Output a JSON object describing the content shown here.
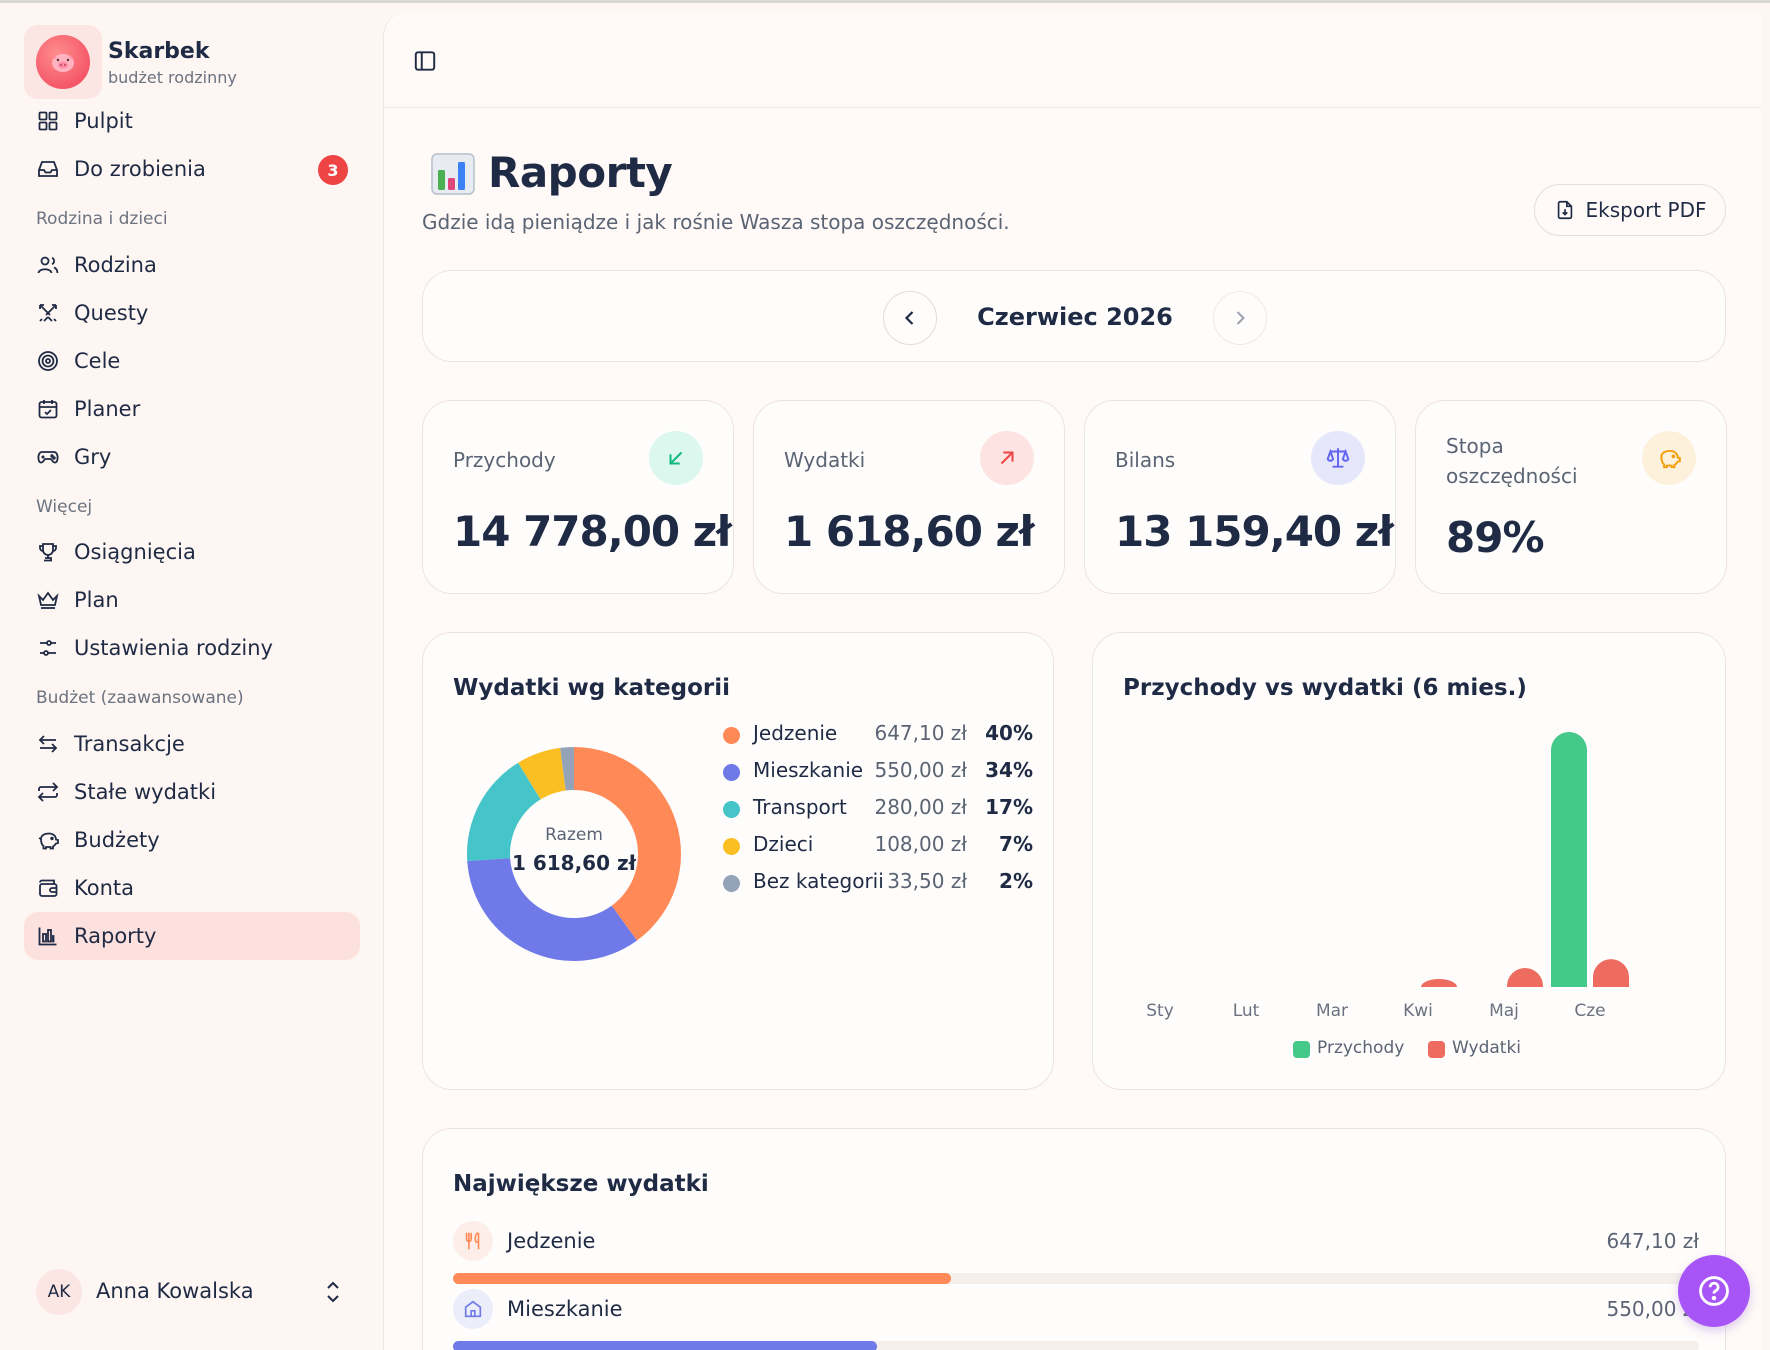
{
  "brand": {
    "title": "Skarbek",
    "subtitle": "budżet rodzinny"
  },
  "nav": {
    "main": [
      {
        "label": "Pulpit",
        "icon": "grid-icon"
      },
      {
        "label": "Do zrobienia",
        "icon": "inbox-icon",
        "badge": "3"
      }
    ],
    "section_family": "Rodzina i dzieci",
    "family": [
      {
        "label": "Rodzina",
        "icon": "users-icon"
      },
      {
        "label": "Questy",
        "icon": "swords-icon"
      },
      {
        "label": "Cele",
        "icon": "target-icon"
      },
      {
        "label": "Planer",
        "icon": "calendar-icon"
      },
      {
        "label": "Gry",
        "icon": "gamepad-icon"
      }
    ],
    "section_more": "Więcej",
    "more": [
      {
        "label": "Osiągnięcia",
        "icon": "trophy-icon"
      },
      {
        "label": "Plan",
        "icon": "crown-icon"
      },
      {
        "label": "Ustawienia rodziny",
        "icon": "sliders-icon"
      }
    ],
    "section_budget": "Budżet (zaawansowane)",
    "budget": [
      {
        "label": "Transakcje",
        "icon": "arrows-icon"
      },
      {
        "label": "Stałe wydatki",
        "icon": "repeat-icon"
      },
      {
        "label": "Budżety",
        "icon": "piggy-icon"
      },
      {
        "label": "Konta",
        "icon": "wallet-icon"
      },
      {
        "label": "Raporty",
        "icon": "bar-chart-icon",
        "active": true
      }
    ]
  },
  "user": {
    "initials": "AK",
    "name": "Anna Kowalska"
  },
  "page": {
    "title": "Raporty",
    "subtitle": "Gdzie idą pieniądze i jak rośnie Wasza stopa oszczędności.",
    "export_label": "Eksport PDF",
    "month": "Czerwiec 2026"
  },
  "stats": [
    {
      "label": "Przychody",
      "value": "14 778,00 zł",
      "icon": "arrow-down-left-icon",
      "color": "#10b981",
      "bg": "#dcf7ee"
    },
    {
      "label": "Wydatki",
      "value": "1 618,60 zł",
      "icon": "arrow-up-right-icon",
      "color": "#ef4444",
      "bg": "#fde4e2"
    },
    {
      "label": "Bilans",
      "value": "13 159,40 zł",
      "icon": "scale-icon",
      "color": "#6366f1",
      "bg": "#e6e7fb"
    },
    {
      "label": "Stopa oszczędności",
      "value": "89%",
      "icon": "piggy-icon",
      "color": "#f59e0b",
      "bg": "#fdf1dc"
    }
  ],
  "chart_data": [
    {
      "type": "pie",
      "title": "Wydatki wg kategorii",
      "center_label": "Razem",
      "center_value": "1 618,60 zł",
      "categories": [
        "Jedzenie",
        "Mieszkanie",
        "Transport",
        "Dzieci",
        "Bez kategorii"
      ],
      "values": [
        647.1,
        550.0,
        280.0,
        108.0,
        33.5
      ],
      "amount_labels": [
        "647,10 zł",
        "550,00 zł",
        "280,00 zł",
        "108,00 zł",
        "33,50 zł"
      ],
      "percent_labels": [
        "40%",
        "34%",
        "17%",
        "7%",
        "2%"
      ],
      "colors": [
        "#ff8a57",
        "#6f7ae8",
        "#45c4c9",
        "#fbbf24",
        "#94a3b8"
      ]
    },
    {
      "type": "bar",
      "title": "Przychody vs wydatki (6 mies.)",
      "categories": [
        "Sty",
        "Lut",
        "Mar",
        "Kwi",
        "Maj",
        "Cze"
      ],
      "series": [
        {
          "name": "Przychody",
          "values": [
            0,
            0,
            0,
            0,
            0,
            14778.0
          ],
          "color": "#45c98a"
        },
        {
          "name": "Wydatki",
          "values": [
            0,
            0,
            0,
            250,
            1100,
            1618.6
          ],
          "color": "#ee6b5f"
        }
      ],
      "ylim": [
        0,
        14778
      ]
    }
  ],
  "top_expenses": {
    "title": "Największe wydatki",
    "items": [
      {
        "name": "Jedzenie",
        "amount": "647,10 zł",
        "fraction": 0.4,
        "color": "#ff8a57",
        "icon": "utensils-icon"
      },
      {
        "name": "Mieszkanie",
        "amount": "550,00 zł",
        "fraction": 0.34,
        "color": "#6f7ae8",
        "icon": "home-icon"
      }
    ]
  }
}
